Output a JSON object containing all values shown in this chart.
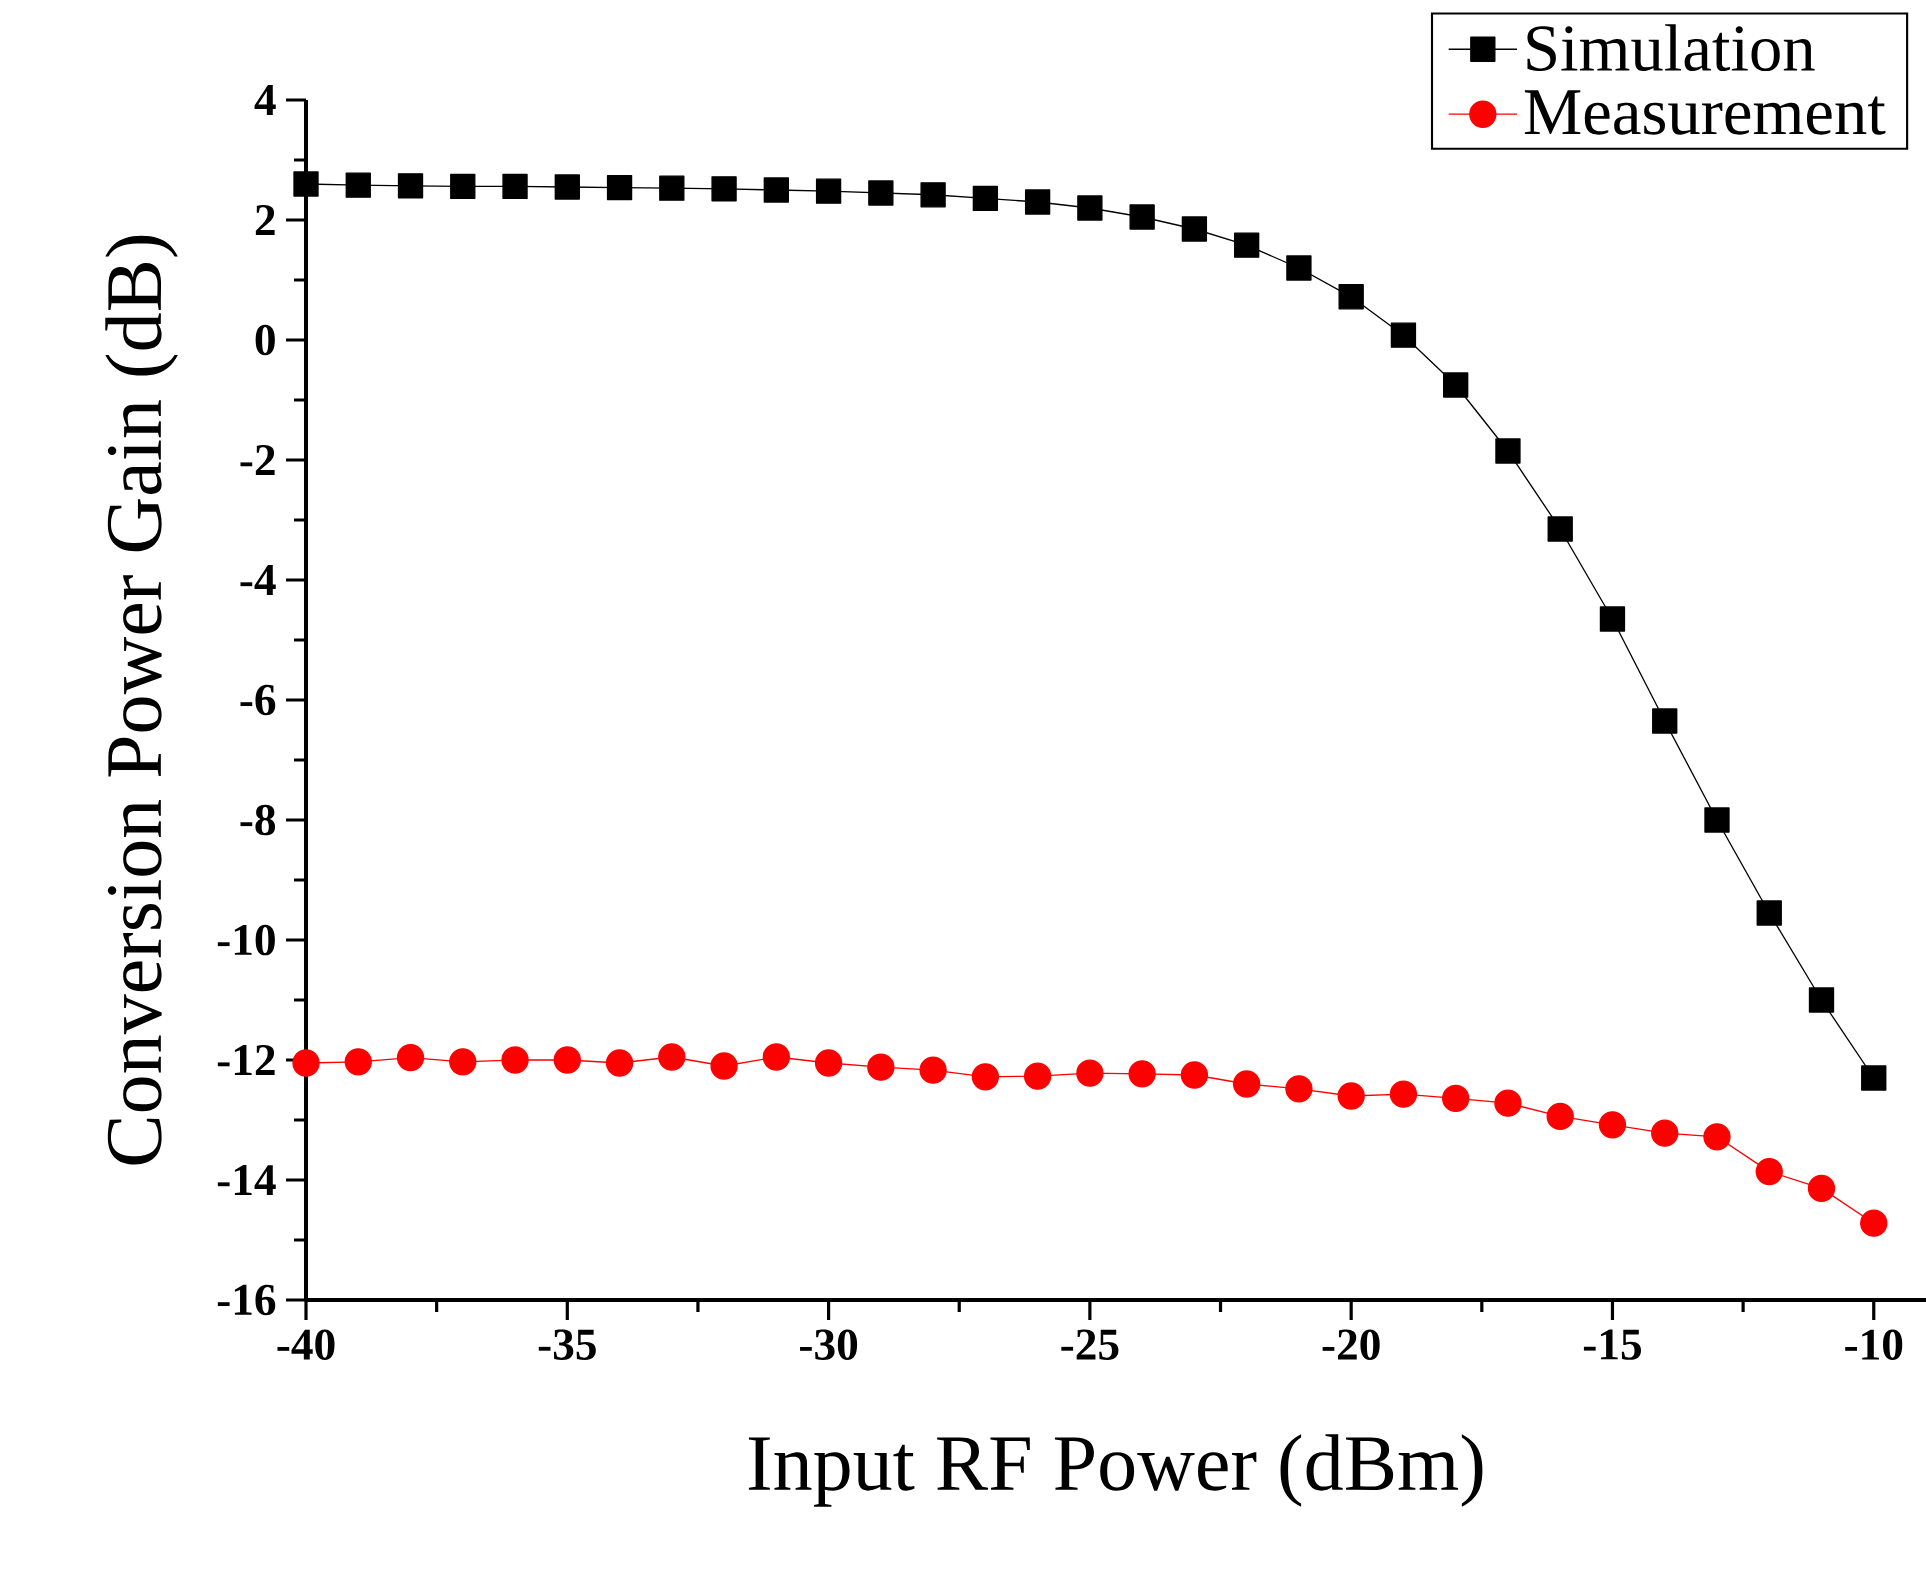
{
  "chart_data": {
    "type": "line",
    "xlabel": "Input RF Power (dBm)",
    "ylabel": "Conversion Power Gain (dB)",
    "x": [
      -40,
      -39,
      -38,
      -37,
      -36,
      -35,
      -34,
      -33,
      -32,
      -31,
      -30,
      -29,
      -28,
      -27,
      -26,
      -25,
      -24,
      -23,
      -22,
      -21,
      -20,
      -19,
      -18,
      -17,
      -16,
      -15,
      -14,
      -13,
      -12,
      -11,
      -10
    ],
    "series": [
      {
        "name": "Simulation",
        "color": "#000000",
        "marker": "square",
        "values": [
          2.6,
          2.58,
          2.57,
          2.56,
          2.56,
          2.55,
          2.54,
          2.53,
          2.52,
          2.5,
          2.48,
          2.45,
          2.42,
          2.36,
          2.3,
          2.2,
          2.05,
          1.85,
          1.58,
          1.2,
          0.72,
          0.08,
          -0.75,
          -1.85,
          -3.15,
          -4.65,
          -6.35,
          -8.0,
          -9.55,
          -11.0,
          -12.3
        ]
      },
      {
        "name": "Measurement",
        "color": "#ff0000",
        "marker": "circle",
        "values": [
          -12.05,
          -12.03,
          -11.96,
          -12.03,
          -12.0,
          -12.0,
          -12.05,
          -11.95,
          -12.1,
          -11.95,
          -12.05,
          -12.12,
          -12.17,
          -12.28,
          -12.27,
          -12.22,
          -12.23,
          -12.25,
          -12.4,
          -12.48,
          -12.6,
          -12.57,
          -12.64,
          -12.72,
          -12.94,
          -13.08,
          -13.22,
          -13.28,
          -13.86,
          -14.14,
          -14.72
        ]
      }
    ],
    "xlim": [
      -40,
      -9
    ],
    "ylim": [
      -16,
      4
    ],
    "xticks": [
      -40,
      -35,
      -30,
      -25,
      -20,
      -15,
      -10
    ],
    "yticks": [
      -16,
      -14,
      -12,
      -10,
      -8,
      -6,
      -4,
      -2,
      0,
      2,
      4
    ],
    "grid": false,
    "legend": "top right",
    "line_style": "solid"
  }
}
